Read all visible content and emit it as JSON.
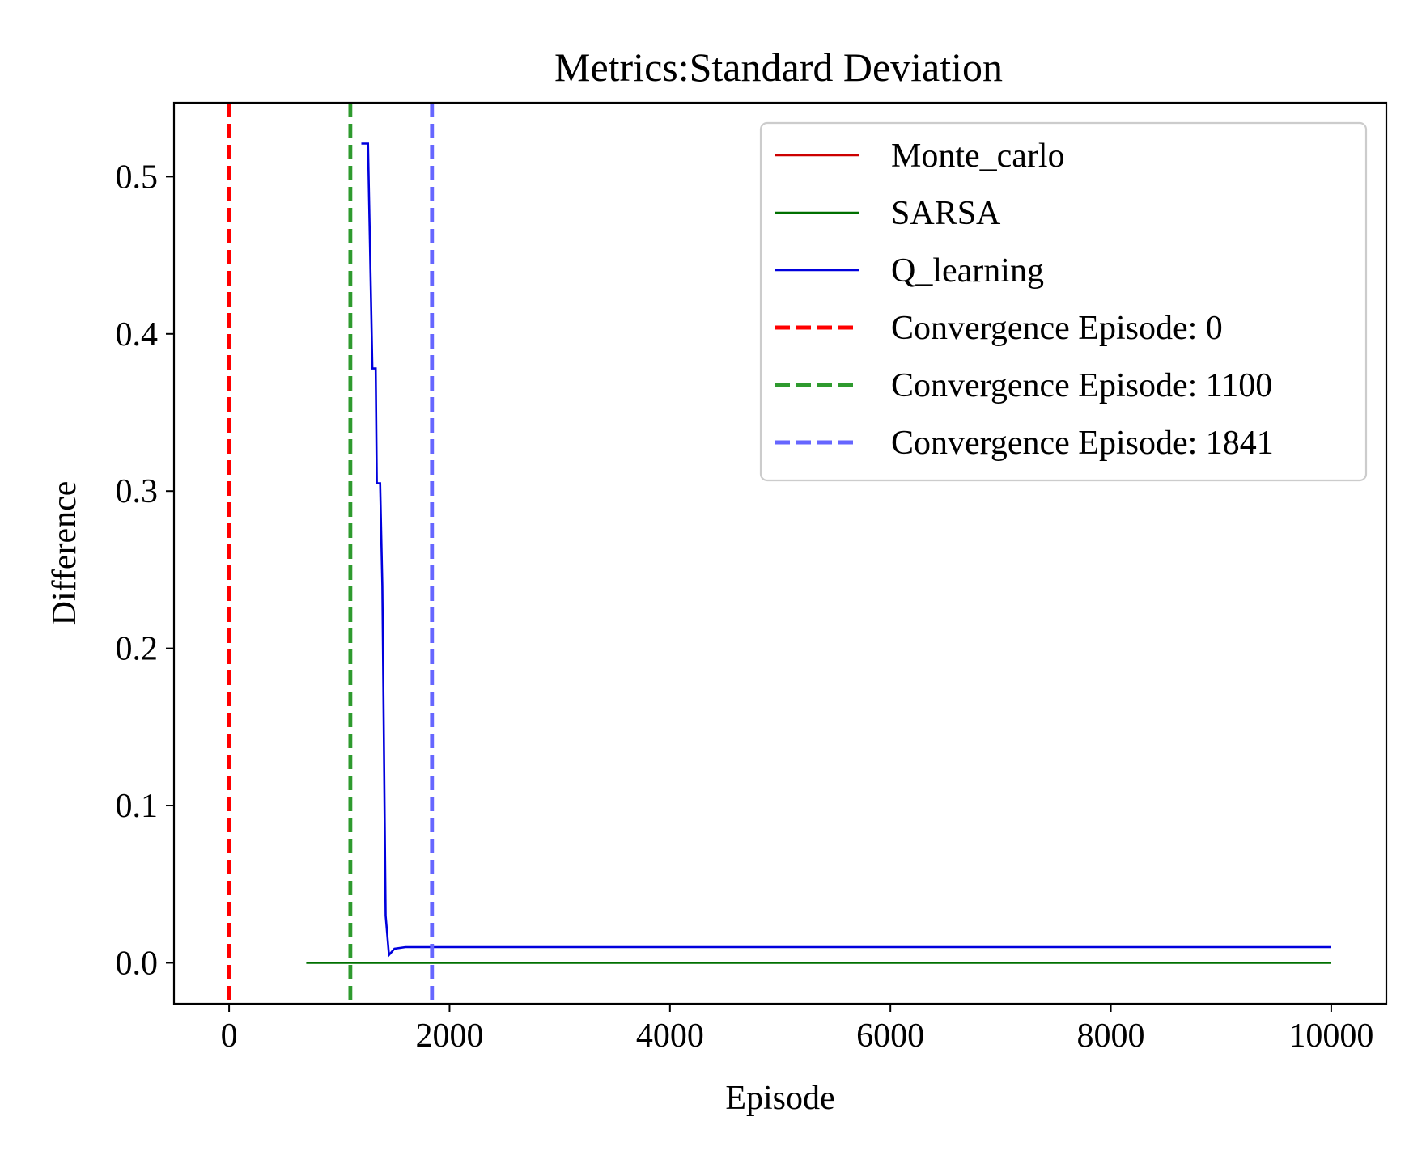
{
  "chart_data": {
    "type": "line",
    "title": "Metrics:Standard Deviation",
    "xlabel": "Episode",
    "ylabel": "Difference",
    "xlim": [
      -500,
      10500
    ],
    "ylim": [
      -0.026,
      0.547
    ],
    "xticks": [
      0,
      2000,
      4000,
      6000,
      8000,
      10000
    ],
    "xtick_labels": [
      "0",
      "2000",
      "4000",
      "6000",
      "8000",
      "10000"
    ],
    "yticks": [
      0.0,
      0.1,
      0.2,
      0.3,
      0.4,
      0.5
    ],
    "ytick_labels": [
      "0.0",
      "0.1",
      "0.2",
      "0.3",
      "0.4",
      "0.5"
    ],
    "grid": false,
    "legend_position": "top-right",
    "series": [
      {
        "name": "Monte_carlo",
        "color": "#cc0000",
        "style": "solid",
        "x": [],
        "y": []
      },
      {
        "name": "SARSA",
        "color": "#007000",
        "style": "solid",
        "x": [
          700,
          10000
        ],
        "y": [
          0.0,
          0.0
        ]
      },
      {
        "name": "Q_learning",
        "color": "#0000dd",
        "style": "solid",
        "x": [
          1200,
          1260,
          1300,
          1330,
          1340,
          1370,
          1390,
          1420,
          1450,
          1500,
          1600,
          2000,
          10000
        ],
        "y": [
          0.521,
          0.521,
          0.378,
          0.378,
          0.305,
          0.305,
          0.24,
          0.03,
          0.005,
          0.009,
          0.01,
          0.01,
          0.01
        ]
      }
    ],
    "vlines": [
      {
        "label": "Convergence Episode: 0",
        "x": 0,
        "color": "#ff0000"
      },
      {
        "label": "Convergence Episode: 1100",
        "x": 1100,
        "color": "#2e9a2e"
      },
      {
        "label": "Convergence Episode: 1841",
        "x": 1841,
        "color": "#6666ff"
      }
    ]
  }
}
